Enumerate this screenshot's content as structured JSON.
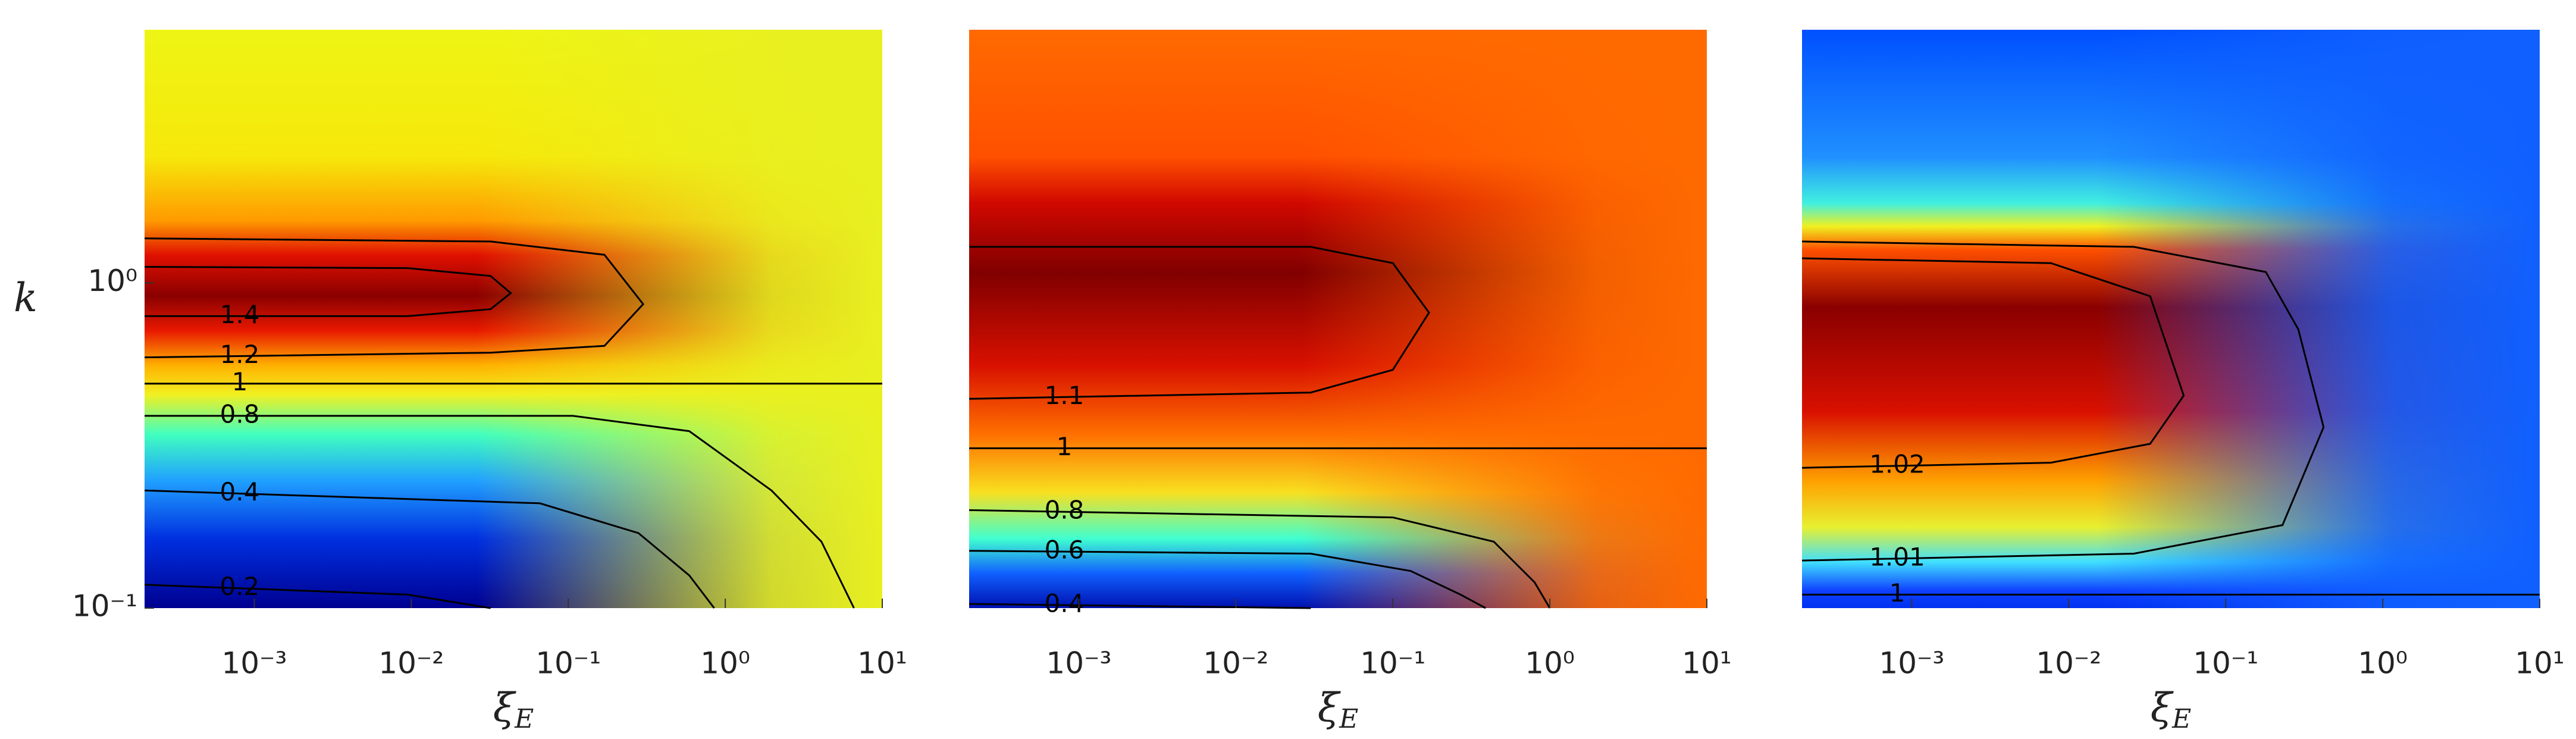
{
  "chart_data": [
    {
      "type": "heatmap",
      "log_x": true,
      "log_y": true,
      "contour_color": "#000000",
      "xlabel": "ξ",
      "xlabel_subscript": "E",
      "ylabel": "k",
      "xlim": [
        0.0002,
        10
      ],
      "ylim": [
        0.1,
        6
      ],
      "xticks": [
        {
          "value": 0.001,
          "label": "10⁻³"
        },
        {
          "value": 0.01,
          "label": "10⁻²"
        },
        {
          "value": 0.1,
          "label": "10⁻¹"
        },
        {
          "value": 1,
          "label": "10⁰"
        },
        {
          "value": 10,
          "label": "10¹"
        }
      ],
      "yticks": [
        {
          "value": 0.1,
          "label": "10⁻¹"
        },
        {
          "value": 1,
          "label": "10⁰"
        }
      ],
      "contours": [
        {
          "level": 1.4,
          "x": [
            0.0002,
            0.0095,
            0.032,
            0.043,
            0.032,
            0.0095,
            0.0002
          ],
          "y": [
            0.79,
            0.79,
            0.83,
            0.93,
            1.05,
            1.11,
            1.12
          ]
        },
        {
          "level": 1.2,
          "x": [
            0.0002,
            0.032,
            0.17,
            0.3,
            0.17,
            0.032,
            0.0002
          ],
          "y": [
            0.59,
            0.61,
            0.64,
            0.86,
            1.22,
            1.34,
            1.37
          ]
        },
        {
          "level": 1,
          "x": [
            0.0002,
            10
          ],
          "y": [
            0.49,
            0.49
          ]
        },
        {
          "level": 0.8,
          "x": [
            0.0002,
            0.107,
            0.59,
            1.97,
            4.1,
            6.6
          ],
          "y": [
            0.39,
            0.39,
            0.35,
            0.23,
            0.16,
            0.1
          ]
        },
        {
          "level": 0.4,
          "x": [
            0.0002,
            0.066,
            0.28,
            0.59,
            0.85
          ],
          "y": [
            0.23,
            0.21,
            0.17,
            0.126,
            0.1
          ]
        },
        {
          "level": 0.2,
          "x": [
            0.0002,
            0.0095,
            0.032
          ],
          "y": [
            0.118,
            0.11,
            0.1
          ]
        }
      ]
    },
    {
      "type": "heatmap",
      "log_x": true,
      "log_y": true,
      "contour_color": "#000000",
      "xlabel": "ξ",
      "xlabel_subscript": "E",
      "xlim": [
        0.0002,
        10
      ],
      "ylim": [
        0.1,
        6
      ],
      "xticks": [
        {
          "value": 0.001,
          "label": "10⁻³"
        },
        {
          "value": 0.01,
          "label": "10⁻²"
        },
        {
          "value": 0.1,
          "label": "10⁻¹"
        },
        {
          "value": 1,
          "label": "10⁰"
        },
        {
          "value": 10,
          "label": "10¹"
        }
      ],
      "contours": [
        {
          "level": 1.1,
          "x": [
            0.0002,
            0.03,
            0.1,
            0.17,
            0.1,
            0.03,
            0.0002
          ],
          "y": [
            0.44,
            0.46,
            0.54,
            0.81,
            1.15,
            1.29,
            1.29
          ]
        },
        {
          "level": 1,
          "x": [
            0.0002,
            10
          ],
          "y": [
            0.31,
            0.31
          ]
        },
        {
          "level": 0.8,
          "x": [
            0.0002,
            0.1,
            0.44,
            0.8,
            1.0
          ],
          "y": [
            0.2,
            0.19,
            0.16,
            0.12,
            0.1
          ]
        },
        {
          "level": 0.6,
          "x": [
            0.0002,
            0.03,
            0.13,
            0.27,
            0.39
          ],
          "y": [
            0.15,
            0.147,
            0.13,
            0.11,
            0.1
          ]
        },
        {
          "level": 0.4,
          "x": [
            0.0002,
            0.03
          ],
          "y": [
            0.103,
            0.1
          ]
        }
      ]
    },
    {
      "type": "heatmap",
      "log_x": true,
      "log_y": true,
      "contour_color": "#000000",
      "xlabel": "ξ",
      "xlabel_subscript": "E",
      "xlim": [
        0.0002,
        10
      ],
      "ylim": [
        0.1,
        6
      ],
      "xticks": [
        {
          "value": 0.001,
          "label": "10⁻³"
        },
        {
          "value": 0.01,
          "label": "10⁻²"
        },
        {
          "value": 0.1,
          "label": "10⁻¹"
        },
        {
          "value": 1,
          "label": "10⁰"
        },
        {
          "value": 10,
          "label": "10¹"
        }
      ],
      "contours": [
        {
          "level": 1.02,
          "x": [
            0.0002,
            0.0077,
            0.033,
            0.054,
            0.033,
            0.0077,
            0.0002
          ],
          "y": [
            0.27,
            0.28,
            0.32,
            0.45,
            0.91,
            1.15,
            1.19
          ]
        },
        {
          "level": 1.01,
          "x": [
            0.0002,
            0.026,
            0.23,
            0.42,
            0.29,
            0.18,
            0.026,
            0.0002
          ],
          "y": [
            0.14,
            0.147,
            0.18,
            0.36,
            0.72,
            1.08,
            1.29,
            1.34
          ]
        },
        {
          "level": 1,
          "x": [
            0.0002,
            10
          ],
          "y": [
            0.11,
            0.11
          ]
        }
      ]
    }
  ]
}
